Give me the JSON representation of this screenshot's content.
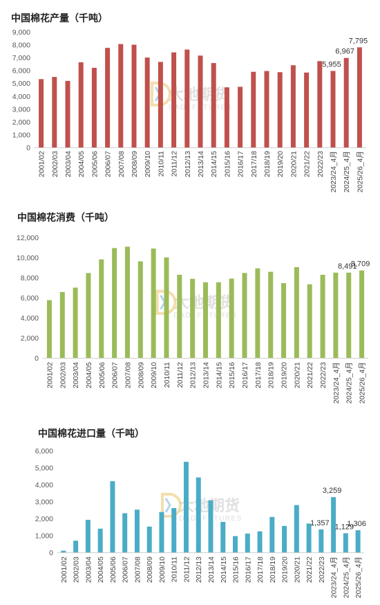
{
  "chart_data": [
    {
      "type": "bar",
      "title": "中国棉花产量（千吨）",
      "color": "#c0504d",
      "ylim": [
        0,
        9000
      ],
      "yticks": [
        "0",
        "1,000",
        "2,000",
        "3,000",
        "4,000",
        "5,000",
        "6,000",
        "7,000",
        "8,000",
        "9,000"
      ],
      "categories": [
        "2001/02",
        "2002/03",
        "2003/04",
        "2004/05",
        "2005/06",
        "2006/07",
        "2007/08",
        "2008/09",
        "2009/10",
        "2010/11",
        "2011/12",
        "2012/13",
        "2013/14",
        "2014/15",
        "2015/16",
        "2016/17",
        "2017/18",
        "2018/19",
        "2019/20",
        "2020/21",
        "2021/22",
        "2022/23",
        "2023/24_4月",
        "2024/25_4月",
        "2025/26_4月"
      ],
      "values": [
        5320,
        5490,
        5180,
        6630,
        6200,
        7750,
        8050,
        8000,
        7000,
        6660,
        7400,
        7620,
        7150,
        6570,
        4680,
        4720,
        5890,
        5950,
        5860,
        6400,
        5830,
        6720,
        5955,
        6967,
        7795
      ],
      "labels": [
        {
          "index": 22,
          "text": "5,955"
        },
        {
          "index": 23,
          "text": "6,967"
        },
        {
          "index": 24,
          "text": "7,795"
        }
      ],
      "grid": false
    },
    {
      "type": "bar",
      "title": "中国棉花消费（千吨）",
      "color": "#9bbb59",
      "ylim": [
        0,
        12000
      ],
      "yticks": [
        "0",
        "2,000",
        "4,000",
        "6,000",
        "8,000",
        "10,000",
        "12,000"
      ],
      "categories": [
        "2001/02",
        "2002/03",
        "2003/04",
        "2004/05",
        "2005/06",
        "2006/07",
        "2007/08",
        "2008/09",
        "2009/10",
        "2010/11",
        "2011/12",
        "2012/13",
        "2013/14",
        "2014/15",
        "2015/16",
        "2016/17",
        "2017/18",
        "2018/19",
        "2019/20",
        "2020/21",
        "2021/22",
        "2022/23",
        "2023/24_4月",
        "2024/25_4月",
        "2025/26_4月"
      ],
      "values": [
        5750,
        6560,
        7000,
        8450,
        9810,
        10940,
        11080,
        9620,
        10890,
        10010,
        8280,
        7880,
        7530,
        7530,
        7900,
        8460,
        8920,
        8580,
        7450,
        9040,
        7330,
        8280,
        8491,
        8491,
        8709
      ],
      "labels": [
        {
          "index": 23,
          "text": "8,491"
        },
        {
          "index": 24,
          "text": "8,709"
        }
      ],
      "grid": false
    },
    {
      "type": "bar",
      "title": "中国棉花进口量（千吨）",
      "color": "#4bacc6",
      "ylim": [
        0,
        6000
      ],
      "yticks": [
        "0",
        "1,000",
        "2,000",
        "3,000",
        "4,000",
        "5,000",
        "6,000"
      ],
      "categories": [
        "2001/02",
        "2002/03",
        "2003/04",
        "2004/05",
        "2005/06",
        "2006/07",
        "2007/08",
        "2008/09",
        "2009/10",
        "2010/11",
        "2011/12",
        "2012/13",
        "2013/14",
        "2014/15",
        "2015/16",
        "2016/17",
        "2017/18",
        "2018/19",
        "2019/20",
        "2020/21",
        "2021/22",
        "2022/23",
        "2023/24_4月",
        "2024/25_4月",
        "2025/26_4月"
      ],
      "values": [
        100,
        690,
        1920,
        1400,
        4200,
        2310,
        2520,
        1520,
        2380,
        2610,
        5340,
        4420,
        3070,
        1800,
        960,
        1110,
        1240,
        2090,
        1560,
        2790,
        1700,
        1357,
        3259,
        1129,
        1306
      ],
      "labels": [
        {
          "index": 21,
          "text": "1,357"
        },
        {
          "index": 22,
          "text": "3,259"
        },
        {
          "index": 23,
          "text": "1,129"
        },
        {
          "index": 24,
          "text": "1,306"
        }
      ],
      "grid": false
    }
  ],
  "watermark": {
    "text": "大地期货",
    "sub": "DADI FUTURES",
    "colors": [
      "#e8b84a",
      "#5aa6d6"
    ]
  }
}
